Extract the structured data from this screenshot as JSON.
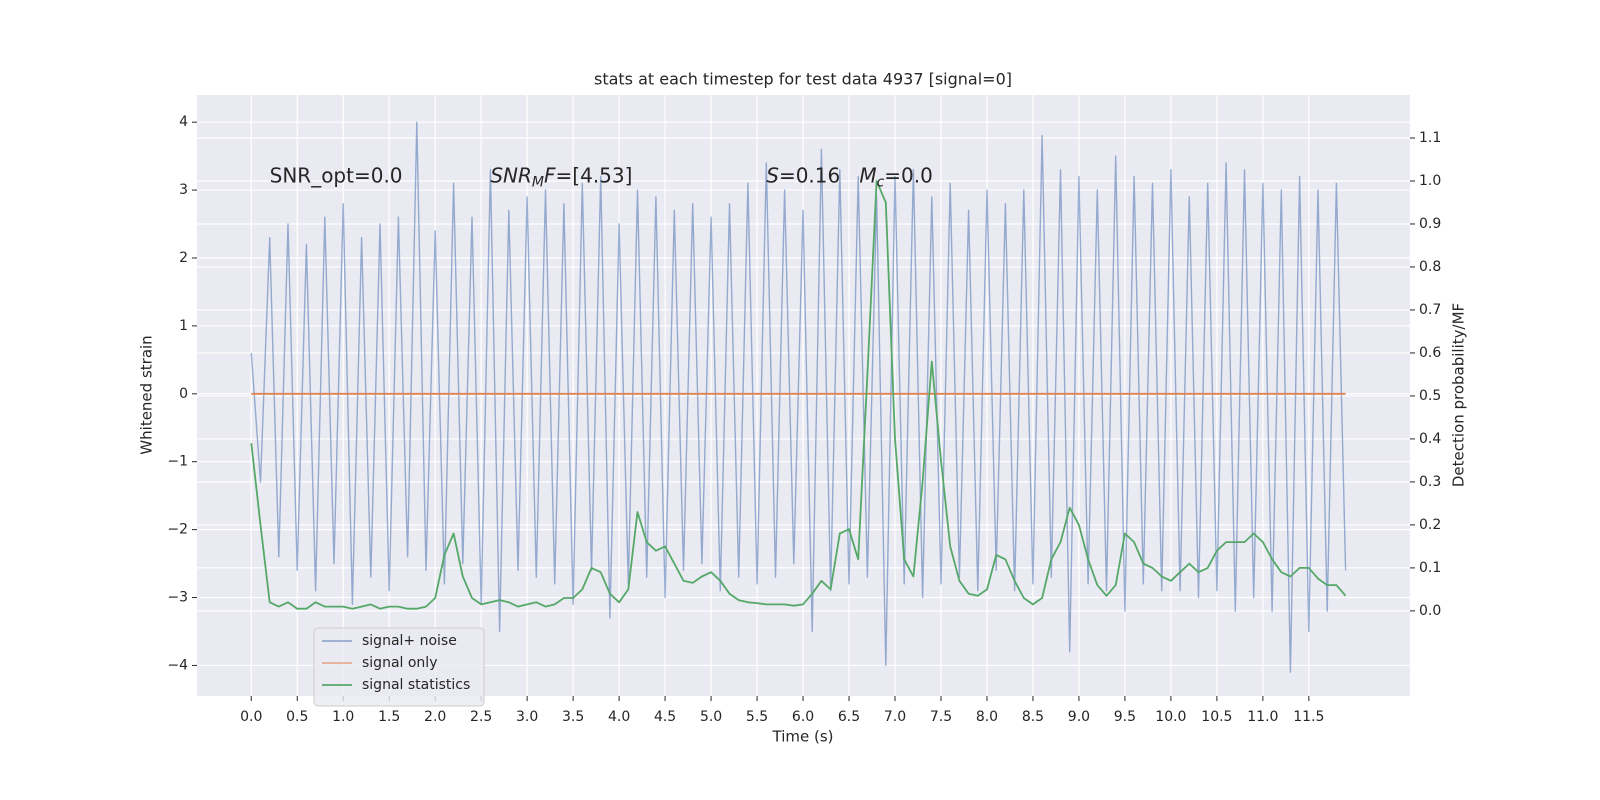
{
  "chart_data": {
    "type": "line",
    "title": "stats at each timestep for test data 4937 [signal=0]",
    "xlabel": "Time (s)",
    "ylabel": "Whitened strain",
    "y2label": "Detection probability/MF",
    "xlim": [
      -0.59,
      12.6
    ],
    "ylim": [
      -4.45,
      4.4
    ],
    "y2lim": [
      -0.198,
      1.2
    ],
    "xticks": [
      {
        "value": 0,
        "label": "0.0"
      },
      0.5,
      {
        "value": 1,
        "label": "1.0"
      },
      1.5,
      {
        "value": 2,
        "label": "2.0"
      },
      2.5,
      {
        "value": 3,
        "label": "3.0"
      },
      3.5,
      {
        "value": 4,
        "label": "4.0"
      },
      4.5,
      {
        "value": 5,
        "label": "5.0"
      },
      5.5,
      {
        "value": 6,
        "label": "6.0"
      },
      6.5,
      {
        "value": 7,
        "label": "7.0"
      },
      7.5,
      {
        "value": 8,
        "label": "8.0"
      },
      8.5,
      {
        "value": 9,
        "label": "9.0"
      },
      9.5,
      {
        "value": 10,
        "label": "10.0"
      },
      10.5,
      {
        "value": 11,
        "label": "11.0"
      },
      11.5
    ],
    "yticks": [
      {
        "value": -4,
        "label": "−4"
      },
      {
        "value": -3,
        "label": "−3"
      },
      {
        "value": -2,
        "label": "−2"
      },
      {
        "value": -1,
        "label": "−1"
      },
      0,
      1,
      2,
      3,
      4
    ],
    "y2ticks": [
      {
        "value": 0,
        "label": "0.0"
      },
      0.1,
      0.2,
      0.3,
      0.4,
      0.5,
      0.6,
      0.7,
      0.8,
      0.9,
      {
        "value": 1,
        "label": "1.0"
      },
      1.1
    ],
    "grid": true,
    "legend": "lower left",
    "x": [
      0,
      0.1,
      0.2,
      0.3,
      0.4,
      0.5,
      0.6,
      0.7,
      0.8,
      0.9,
      1,
      1.1,
      1.2,
      1.3,
      1.4,
      1.5,
      1.6,
      1.7,
      1.8,
      1.9,
      2,
      2.1,
      2.2,
      2.3,
      2.4,
      2.5,
      2.6,
      2.7,
      2.8,
      2.9,
      3,
      3.1,
      3.2,
      3.3,
      3.4,
      3.5,
      3.6,
      3.7,
      3.8,
      3.9,
      4,
      4.1,
      4.2,
      4.3,
      4.4,
      4.5,
      4.6,
      4.7,
      4.8,
      4.9,
      5,
      5.1,
      5.2,
      5.3,
      5.4,
      5.5,
      5.6,
      5.7,
      5.8,
      5.9,
      6,
      6.1,
      6.2,
      6.3,
      6.4,
      6.5,
      6.6,
      6.7,
      6.8,
      6.9,
      7,
      7.1,
      7.2,
      7.3,
      7.4,
      7.5,
      7.6,
      7.7,
      7.8,
      7.9,
      8,
      8.1,
      8.2,
      8.3,
      8.4,
      8.5,
      8.6,
      8.7,
      8.8,
      8.9,
      9,
      9.1,
      9.2,
      9.3,
      9.4,
      9.5,
      9.6,
      9.7,
      9.8,
      9.9,
      10,
      10.1,
      10.2,
      10.3,
      10.4,
      10.5,
      10.6,
      10.7,
      10.8,
      10.9,
      11,
      11.1,
      11.2,
      11.3,
      11.4,
      11.5,
      11.6,
      11.7,
      11.8,
      11.9
    ],
    "series": [
      {
        "name": "signal+ noise",
        "color": "#4c72b0",
        "values": [
          0.6,
          -1.3,
          2.3,
          -2.4,
          2.5,
          -2.6,
          2.2,
          -2.9,
          2.6,
          -2.5,
          2.8,
          -3.1,
          2.3,
          -2.7,
          2.5,
          -2.9,
          2.6,
          -2.4,
          4.0,
          -2.6,
          2.4,
          -2.8,
          3.1,
          -2.5,
          2.6,
          -3.1,
          3.3,
          -3.5,
          2.7,
          -2.6,
          2.9,
          -2.7,
          3.0,
          -2.8,
          2.8,
          -3.1,
          3.1,
          -2.6,
          3.2,
          -3.3,
          2.5,
          -2.8,
          3.0,
          -2.7,
          2.9,
          -3.0,
          2.7,
          -2.6,
          2.8,
          -2.5,
          2.6,
          -2.9,
          2.8,
          -2.7,
          3.1,
          -2.8,
          3.4,
          -2.7,
          3.0,
          -2.5,
          2.7,
          -3.5,
          3.6,
          -2.9,
          3.3,
          -2.8,
          3.2,
          -2.7,
          2.9,
          -4.0,
          3.2,
          -2.8,
          3.3,
          -3.0,
          2.9,
          -2.8,
          3.1,
          -2.7,
          2.7,
          -2.9,
          3.0,
          -2.6,
          2.8,
          -2.9,
          3.0,
          -2.8,
          3.8,
          -2.7,
          3.3,
          -3.8,
          3.2,
          -2.8,
          3.0,
          -2.9,
          3.5,
          -3.2,
          3.2,
          -2.8,
          3.1,
          -2.9,
          3.3,
          -2.9,
          2.9,
          -3.0,
          3.1,
          -2.9,
          3.4,
          -3.2,
          3.3,
          -3.0,
          3.1,
          -3.2,
          3.0,
          -4.1,
          3.2,
          -3.5,
          3.0,
          -3.2,
          3.1,
          -2.6
        ]
      },
      {
        "name": "signal only",
        "color": "#dd8452",
        "x": [
          0,
          11.9
        ],
        "values": [
          0,
          0
        ]
      },
      {
        "name": "signal statistics",
        "color": "#55a868",
        "axis": "y2",
        "values": [
          0.39,
          0.2,
          0.02,
          0.01,
          0.02,
          0.005,
          0.005,
          0.02,
          0.01,
          0.01,
          0.01,
          0.005,
          0.01,
          0.015,
          0.005,
          0.01,
          0.01,
          0.005,
          0.005,
          0.01,
          0.03,
          0.13,
          0.18,
          0.08,
          0.03,
          0.015,
          0.02,
          0.025,
          0.02,
          0.01,
          0.015,
          0.02,
          0.01,
          0.015,
          0.03,
          0.03,
          0.05,
          0.1,
          0.09,
          0.04,
          0.02,
          0.05,
          0.23,
          0.16,
          0.14,
          0.15,
          0.11,
          0.07,
          0.065,
          0.08,
          0.09,
          0.07,
          0.04,
          0.025,
          0.02,
          0.018,
          0.015,
          0.015,
          0.015,
          0.012,
          0.015,
          0.04,
          0.07,
          0.05,
          0.18,
          0.19,
          0.12,
          0.55,
          1.0,
          0.95,
          0.4,
          0.12,
          0.08,
          0.3,
          0.58,
          0.35,
          0.15,
          0.07,
          0.04,
          0.035,
          0.05,
          0.13,
          0.12,
          0.07,
          0.03,
          0.015,
          0.03,
          0.12,
          0.16,
          0.24,
          0.2,
          0.12,
          0.06,
          0.035,
          0.06,
          0.18,
          0.16,
          0.11,
          0.1,
          0.08,
          0.07,
          0.09,
          0.11,
          0.09,
          0.1,
          0.14,
          0.16,
          0.16,
          0.16,
          0.18,
          0.16,
          0.12,
          0.09,
          0.08,
          0.1,
          0.1,
          0.075,
          0.06,
          0.06,
          0.035
        ]
      }
    ],
    "annotations": [
      {
        "x": 0.2,
        "y": 3.2,
        "parts": [
          {
            "text": "SNR_opt=0.0"
          }
        ]
      },
      {
        "x": 2.6,
        "y": 3.2,
        "parts": [
          {
            "text": "SNR",
            "italic": true
          },
          {
            "text": "M",
            "italic": true,
            "sub": true
          },
          {
            "text": "F",
            "italic": true
          },
          {
            "text": "=[4.53]"
          }
        ]
      },
      {
        "x": 5.6,
        "y": 3.2,
        "parts": [
          {
            "text": "S",
            "italic": true
          },
          {
            "text": "=0.16   "
          },
          {
            "text": "M",
            "italic": true
          },
          {
            "text": "c",
            "italic": true,
            "sub": true
          },
          {
            "text": "=0.0"
          }
        ]
      }
    ]
  }
}
